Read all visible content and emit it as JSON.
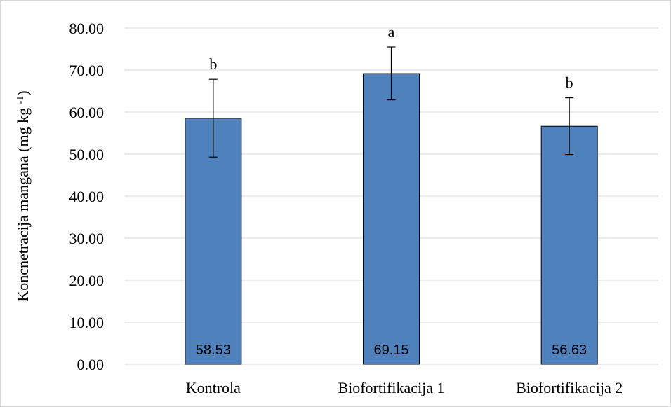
{
  "chart_data": {
    "type": "bar",
    "categories": [
      "Kontrola",
      "Biofortifikacija 1",
      "Biofortifikacija 2"
    ],
    "values": [
      58.53,
      69.15,
      56.63
    ],
    "value_labels": [
      "58.53",
      "69.15",
      "56.63"
    ],
    "error_upper": [
      67.8,
      75.5,
      63.4
    ],
    "error_lower": [
      49.3,
      62.9,
      49.9
    ],
    "significance": [
      "b",
      "a",
      "b"
    ],
    "ylabel_main": "Koncnetracija mangana (mg kg ",
    "ylabel_sup": "-1",
    "ylabel_tail": ")",
    "ylim": [
      0,
      80
    ],
    "yticks": [
      0,
      10,
      20,
      30,
      40,
      50,
      60,
      70,
      80
    ],
    "ytick_labels": [
      "0.00",
      "10.00",
      "20.00",
      "30.00",
      "40.00",
      "50.00",
      "60.00",
      "70.00",
      "80.00"
    ],
    "grid": true,
    "bar_color": "#4f81bd",
    "bar_stroke": "#000000",
    "grid_color": "#d9d9d9"
  }
}
